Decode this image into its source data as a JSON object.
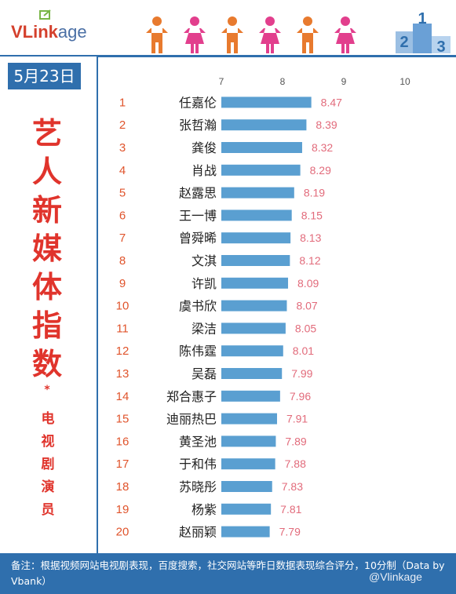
{
  "header": {
    "logo_text_bold": "VLink",
    "logo_text_light": "age",
    "figures_icon": "person-figures-icon",
    "podium_icon": "podium-icon",
    "podium_labels": [
      "2",
      "1",
      "3"
    ]
  },
  "date": "5月23日",
  "title_chars": [
    "艺",
    "人",
    "新",
    "媒",
    "体",
    "指",
    "数"
  ],
  "star": "*",
  "subtitle_chars": [
    "电",
    "视",
    "剧",
    "演",
    "员"
  ],
  "footer": {
    "note": "备注：根据视频网站电视剧表现，百度搜索，社交网站等昨日数据表现综合评分，10分制（Data by Vbank）",
    "watermark": "@Vlinkage"
  },
  "colors": {
    "brand_blue": "#2f6fad",
    "bar_blue": "#5a9fd1",
    "rank_orange": "#e0542c",
    "value_pink": "#e26b7b",
    "title_red": "#e0342c"
  },
  "chart_data": {
    "type": "bar",
    "orientation": "horizontal",
    "x_ticks": [
      7,
      8,
      9,
      10
    ],
    "xlim": [
      7,
      10
    ],
    "ranks": [
      "1",
      "2",
      "3",
      "4",
      "5",
      "6",
      "7",
      "8",
      "9",
      "10",
      "11",
      "12",
      "13",
      "14",
      "15",
      "16",
      "17",
      "18",
      "19",
      "20"
    ],
    "categories": [
      "任嘉伦",
      "张哲瀚",
      "龚俊",
      "肖战",
      "赵露思",
      "王一博",
      "曾舜晞",
      "文淇",
      "许凯",
      "虞书欣",
      "梁洁",
      "陈伟霆",
      "吴磊",
      "郑合惠子",
      "迪丽热巴",
      "黄圣池",
      "于和伟",
      "苏晓彤",
      "杨紫",
      "赵丽颖"
    ],
    "values": [
      8.47,
      8.39,
      8.32,
      8.29,
      8.19,
      8.15,
      8.13,
      8.12,
      8.09,
      8.07,
      8.05,
      8.01,
      7.99,
      7.96,
      7.91,
      7.89,
      7.88,
      7.83,
      7.81,
      7.79
    ],
    "grid": false
  }
}
